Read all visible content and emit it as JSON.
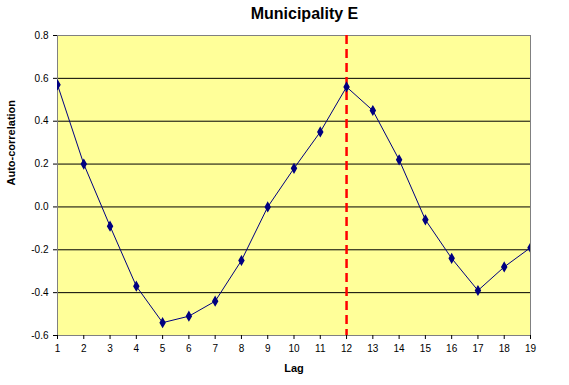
{
  "chart_data": {
    "type": "line",
    "title": "Municipality E",
    "x_label": "Lag",
    "y_label": "Auto-correlation",
    "x": [
      1,
      2,
      3,
      4,
      5,
      6,
      7,
      8,
      9,
      10,
      11,
      12,
      13,
      14,
      15,
      16,
      17,
      18,
      19
    ],
    "values": [
      0.57,
      0.2,
      -0.09,
      -0.37,
      -0.54,
      -0.51,
      -0.44,
      -0.25,
      0.0,
      0.18,
      0.35,
      0.56,
      0.45,
      0.22,
      -0.06,
      -0.24,
      -0.39,
      -0.28,
      -0.19
    ],
    "color": "#000080",
    "marker": "diamond",
    "xlim": [
      1,
      19
    ],
    "xticks": [
      1,
      2,
      3,
      4,
      5,
      6,
      7,
      8,
      9,
      10,
      11,
      12,
      13,
      14,
      15,
      16,
      17,
      18,
      19
    ],
    "ylim": [
      -0.6,
      0.8
    ],
    "yticks": [
      -0.6,
      -0.4,
      -0.2,
      {
        "value": 0,
        "label": "0.0"
      },
      0.2,
      0.4,
      0.6,
      0.8
    ],
    "grid": true,
    "reference_line": {
      "x": 12,
      "color": "#ff0000",
      "line_style": "dashed"
    }
  }
}
